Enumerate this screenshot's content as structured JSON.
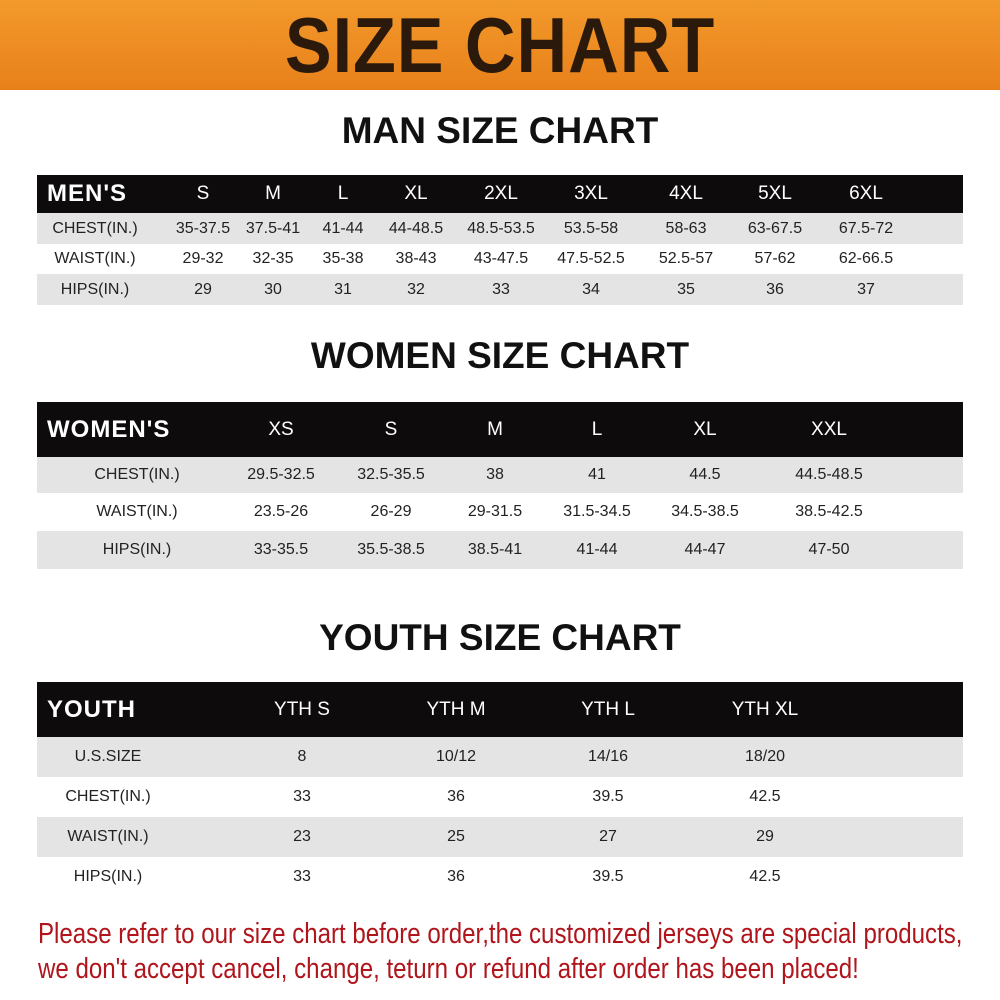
{
  "title": "SIZE CHART",
  "colors": {
    "banner": "#ee8a22",
    "header_row": "#0d0b0b",
    "note": "#b0151c"
  },
  "tables": [
    {
      "id": "men",
      "title": "MAN SIZE CHART",
      "header": [
        "MEN'S",
        "S",
        "M",
        "L",
        "XL",
        "2XL",
        "3XL",
        "4XL",
        "5XL",
        "6XL"
      ],
      "rows": [
        [
          "CHEST(IN.)",
          "35-37.5",
          "37.5-41",
          "41-44",
          "44-48.5",
          "48.5-53.5",
          "53.5-58",
          "58-63",
          "63-67.5",
          "67.5-72"
        ],
        [
          "WAIST(IN.)",
          "29-32",
          "32-35",
          "35-38",
          "38-43",
          "43-47.5",
          "47.5-52.5",
          "52.5-57",
          "57-62",
          "62-66.5"
        ],
        [
          "HIPS(IN.)",
          "29",
          "30",
          "31",
          "32",
          "33",
          "34",
          "35",
          "36",
          "37"
        ]
      ]
    },
    {
      "id": "women",
      "title": "WOMEN SIZE CHART",
      "header": [
        "WOMEN'S",
        "XS",
        "S",
        "M",
        "L",
        "XL",
        "XXL"
      ],
      "rows": [
        [
          "CHEST(IN.)",
          "29.5-32.5",
          "32.5-35.5",
          "38",
          "41",
          "44.5",
          "44.5-48.5"
        ],
        [
          "WAIST(IN.)",
          "23.5-26",
          "26-29",
          "29-31.5",
          "31.5-34.5",
          "34.5-38.5",
          "38.5-42.5"
        ],
        [
          "HIPS(IN.)",
          "33-35.5",
          "35.5-38.5",
          "38.5-41",
          "41-44",
          "44-47",
          "47-50"
        ]
      ]
    },
    {
      "id": "youth",
      "title": "YOUTH SIZE CHART",
      "header": [
        "YOUTH",
        "YTH S",
        "YTH M",
        "YTH L",
        "YTH XL"
      ],
      "rows": [
        [
          "U.S.SIZE",
          "8",
          "10/12",
          "14/16",
          "18/20"
        ],
        [
          "CHEST(IN.)",
          "33",
          "36",
          "39.5",
          "42.5"
        ],
        [
          "WAIST(IN.)",
          "23",
          "25",
          "27",
          "29"
        ],
        [
          "HIPS(IN.)",
          "33",
          "36",
          "39.5",
          "42.5"
        ]
      ]
    }
  ],
  "notice": [
    "Please refer to our size chart before order,the customized jerseys are special products,",
    "we don't accept cancel, change, teturn or refund after order has been placed!"
  ]
}
